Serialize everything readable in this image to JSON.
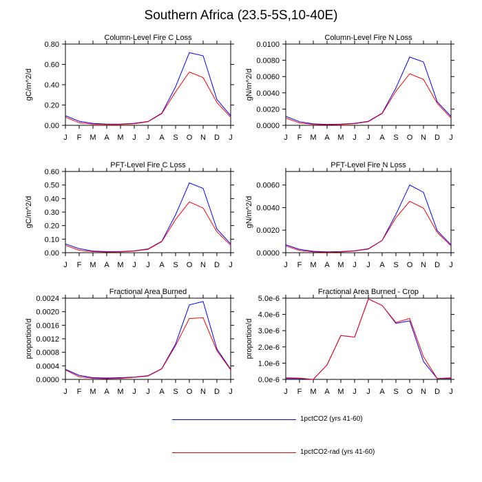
{
  "title": "Southern Africa (23.5-5S,10-40E)",
  "colors": {
    "series1": "#0000ff",
    "series2": "#ff0000",
    "axis": "#000000"
  },
  "legend": [
    {
      "label": "1pctCO2 (yrs 41-60)",
      "color": "#0000ff"
    },
    {
      "label": "1pctCO2-rad (yrs 41-60)",
      "color": "#ff0000"
    }
  ],
  "chart_data": [
    {
      "type": "line",
      "title": "Column-Level Fire C Loss",
      "ylabel": "gC/m^2/d",
      "categories": [
        "J",
        "F",
        "M",
        "A",
        "M",
        "J",
        "J",
        "A",
        "S",
        "O",
        "N",
        "D",
        "J"
      ],
      "ylim": [
        0,
        0.8
      ],
      "yticks": [
        "0.00",
        "0.20",
        "0.40",
        "0.60",
        "0.80"
      ],
      "series": [
        {
          "name": "1pctCO2 (yrs 41-60)",
          "values": [
            0.095,
            0.04,
            0.018,
            0.012,
            0.012,
            0.02,
            0.038,
            0.12,
            0.38,
            0.715,
            0.685,
            0.255,
            0.095
          ]
        },
        {
          "name": "1pctCO2-rad (yrs 41-60)",
          "values": [
            0.08,
            0.025,
            0.012,
            0.008,
            0.008,
            0.015,
            0.035,
            0.115,
            0.33,
            0.525,
            0.47,
            0.225,
            0.08
          ]
        }
      ]
    },
    {
      "type": "line",
      "title": "Column-Level Fire N Loss",
      "ylabel": "gN/m^2/d",
      "categories": [
        "J",
        "F",
        "M",
        "A",
        "M",
        "J",
        "J",
        "A",
        "S",
        "O",
        "N",
        "D",
        "J"
      ],
      "ylim": [
        0,
        0.01
      ],
      "yticks": [
        "0.0000",
        "0.0020",
        "0.0040",
        "0.0060",
        "0.0080",
        "0.0100"
      ],
      "series": [
        {
          "name": "1pctCO2 (yrs 41-60)",
          "values": [
            0.0011,
            0.00045,
            0.00018,
            0.00012,
            0.00014,
            0.00025,
            0.0005,
            0.0015,
            0.0046,
            0.0084,
            0.0078,
            0.0029,
            0.0011
          ]
        },
        {
          "name": "1pctCO2-rad (yrs 41-60)",
          "values": [
            0.0009,
            0.0003,
            0.00012,
            8e-05,
            0.0001,
            0.0002,
            0.00045,
            0.00145,
            0.0042,
            0.00635,
            0.00565,
            0.0027,
            0.0009
          ]
        }
      ]
    },
    {
      "type": "line",
      "title": "PFT-Level Fire C Loss",
      "ylabel": "gC/m^2/d",
      "categories": [
        "J",
        "F",
        "M",
        "A",
        "M",
        "J",
        "J",
        "A",
        "S",
        "O",
        "N",
        "D",
        "J"
      ],
      "ylim": [
        0,
        0.6
      ],
      "yticks": [
        "0.00",
        "0.10",
        "0.20",
        "0.30",
        "0.40",
        "0.50",
        "0.60"
      ],
      "series": [
        {
          "name": "1pctCO2 (yrs 41-60)",
          "values": [
            0.065,
            0.03,
            0.012,
            0.008,
            0.008,
            0.014,
            0.028,
            0.085,
            0.28,
            0.515,
            0.475,
            0.175,
            0.065
          ]
        },
        {
          "name": "1pctCO2-rad (yrs 41-60)",
          "values": [
            0.055,
            0.018,
            0.008,
            0.005,
            0.006,
            0.012,
            0.025,
            0.082,
            0.245,
            0.375,
            0.33,
            0.155,
            0.055
          ]
        }
      ]
    },
    {
      "type": "line",
      "title": "PFT-Level Fire N Loss",
      "ylabel": "gN/m^2/d",
      "categories": [
        "J",
        "F",
        "M",
        "A",
        "M",
        "J",
        "J",
        "A",
        "S",
        "O",
        "N",
        "D",
        "J"
      ],
      "ylim": [
        0,
        0.0072
      ],
      "yticks": [
        "0.0000",
        "0.0020",
        "0.0040",
        "0.0060"
      ],
      "series": [
        {
          "name": "1pctCO2 (yrs 41-60)",
          "values": [
            0.0007,
            0.0003,
            0.00012,
            8e-05,
            0.0001,
            0.00018,
            0.00035,
            0.0011,
            0.0034,
            0.006,
            0.00535,
            0.00195,
            0.0007
          ]
        },
        {
          "name": "1pctCO2-rad (yrs 41-60)",
          "values": [
            0.0006,
            0.0002,
            8e-05,
            5e-05,
            7e-05,
            0.00015,
            0.00032,
            0.00108,
            0.0031,
            0.00455,
            0.00395,
            0.0018,
            0.0006
          ]
        }
      ]
    },
    {
      "type": "line",
      "title": "Fractional Area Burned",
      "ylabel": "proportion/d",
      "categories": [
        "J",
        "F",
        "M",
        "A",
        "M",
        "J",
        "J",
        "A",
        "S",
        "O",
        "N",
        "D",
        "J"
      ],
      "ylim": [
        0,
        0.0024
      ],
      "yticks": [
        "0.0000",
        "0.0004",
        "0.0008",
        "0.0012",
        "0.0016",
        "0.0020",
        "0.0024"
      ],
      "series": [
        {
          "name": "1pctCO2 (yrs 41-60)",
          "values": [
            0.0003,
            0.00012,
            5e-05,
            4e-05,
            5e-05,
            7e-05,
            0.00011,
            0.00032,
            0.00105,
            0.0022,
            0.0023,
            0.0009,
            0.0003
          ]
        },
        {
          "name": "1pctCO2-rad (yrs 41-60)",
          "values": [
            0.00028,
            8e-05,
            3e-05,
            2e-05,
            3e-05,
            6e-05,
            0.0001,
            0.00031,
            0.001,
            0.0018,
            0.00182,
            0.00085,
            0.00028
          ]
        }
      ]
    },
    {
      "type": "line",
      "title": "Fractional Area Burned - Crop",
      "ylabel": "proportion/d",
      "categories": [
        "J",
        "F",
        "M",
        "A",
        "M",
        "J",
        "J",
        "A",
        "S",
        "O",
        "N",
        "D",
        "J"
      ],
      "ylim": [
        0,
        5e-06
      ],
      "yticks": [
        "0.0e-6",
        "1.0e-6",
        "2.0e-6",
        "3.0e-6",
        "4.0e-6",
        "5.0e-6"
      ],
      "series": [
        {
          "name": "1pctCO2 (yrs 41-60)",
          "values": [
            5e-08,
            5e-08,
            0.0,
            9e-07,
            2.7e-06,
            2.6e-06,
            4.95e-06,
            4.55e-06,
            3.45e-06,
            3.6e-06,
            1.1e-06,
            5e-08,
            5e-08
          ]
        },
        {
          "name": "1pctCO2-rad (yrs 41-60)",
          "values": [
            1e-07,
            8e-08,
            0.0,
            9e-07,
            2.7e-06,
            2.6e-06,
            4.95e-06,
            4.55e-06,
            3.5e-06,
            3.75e-06,
            1.4e-06,
            5e-08,
            1e-07
          ]
        }
      ]
    }
  ]
}
